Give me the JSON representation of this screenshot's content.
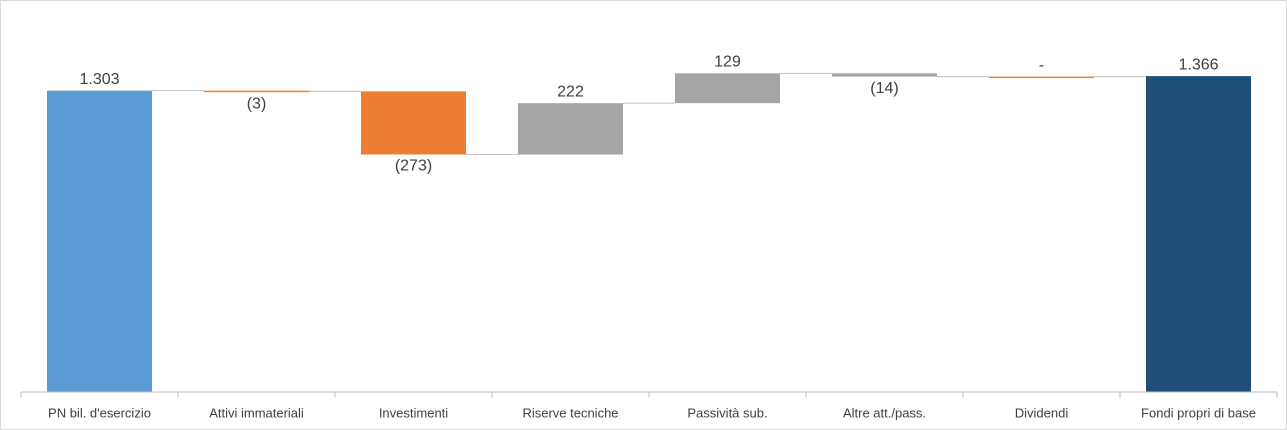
{
  "chart_data": {
    "type": "waterfall",
    "categories": [
      "PN  bil. d'esercizio",
      "Attivi immateriali",
      "Investimenti",
      "Riserve tecniche",
      "Passività sub.",
      "Altre att./pass.",
      "Dividendi",
      "Fondi propri di base"
    ],
    "values": [
      1303,
      -3,
      -273,
      222,
      129,
      -14,
      0,
      1366
    ],
    "value_labels": [
      "1.303",
      "(3)",
      "(273)",
      "222",
      "129",
      "(14)",
      "-",
      "1.366"
    ],
    "measure": [
      "absolute",
      "relative",
      "relative",
      "relative",
      "relative",
      "relative",
      "relative",
      "absolute"
    ],
    "colors": [
      "#5b9bd5",
      "#ed7d31",
      "#ed7d31",
      "#a5a5a5",
      "#a5a5a5",
      "#a5a5a5",
      "#ed7d31",
      "#1f4e79"
    ],
    "ylim": [
      0,
      1600
    ]
  }
}
